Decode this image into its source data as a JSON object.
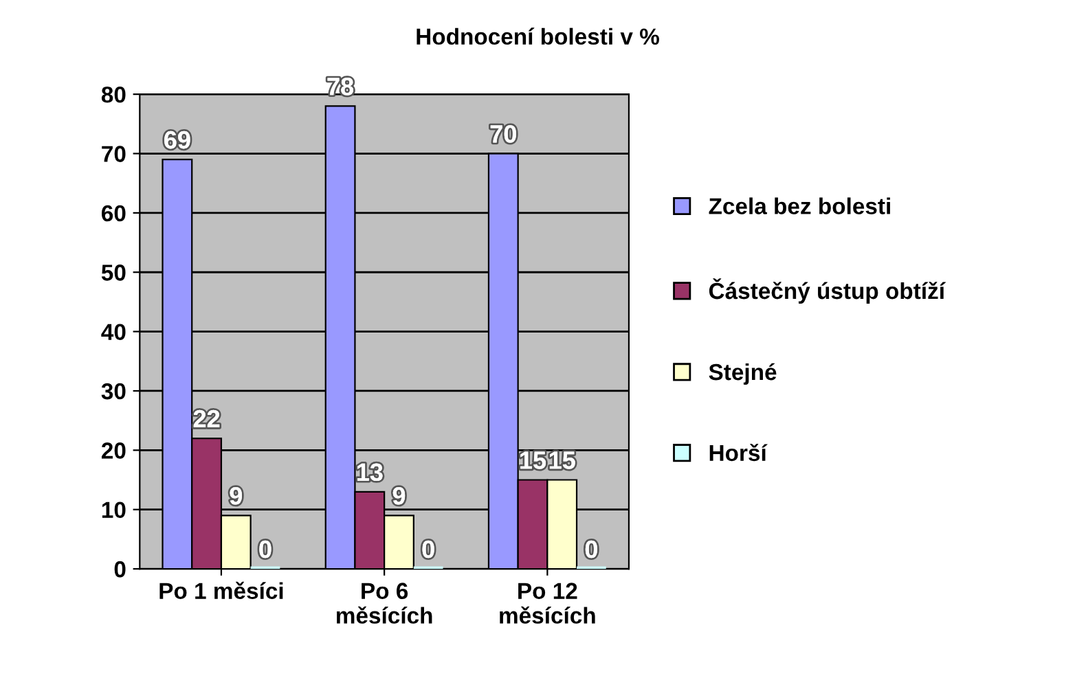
{
  "chart_data": {
    "type": "bar",
    "title": "Hodnocení bolesti v %",
    "categories": [
      "Po 1 měsíci",
      "Po 6 měsících",
      "Po 12 měsících"
    ],
    "series": [
      {
        "name": "Zcela bez bolesti",
        "color": "#9999ff",
        "values": [
          69,
          78,
          70
        ]
      },
      {
        "name": "Částečný ústup obtíží",
        "color": "#993366",
        "values": [
          22,
          13,
          15
        ]
      },
      {
        "name": "Stejné",
        "color": "#ffffcc",
        "values": [
          9,
          9,
          15
        ]
      },
      {
        "name": "Horší",
        "color": "#ccffff",
        "values": [
          0,
          0,
          0
        ]
      }
    ],
    "ylim": [
      0,
      80
    ],
    "yticks": [
      0,
      10,
      20,
      30,
      40,
      50,
      60,
      70,
      80
    ],
    "grid": "y",
    "legend": "right",
    "data_labels": true
  }
}
